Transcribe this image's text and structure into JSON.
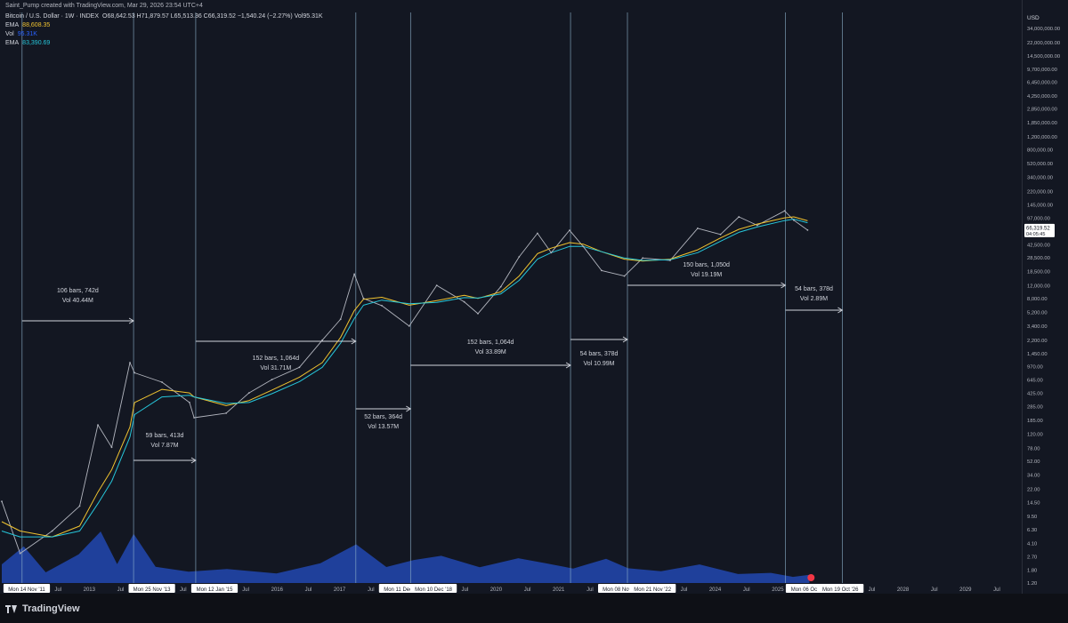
{
  "header": {
    "credit": "Saint_Pump created with TradingView.com, Mar 29, 2026 23:54 UTC+4",
    "symbol": "Bitcoin / U.S. Dollar · 1W · INDEX",
    "ohlc": "O68,642.53 H71,879.57 L65,513.36 C66,319.52 −1,540.24 (−2.27%) Vol95.31K",
    "indicators": [
      {
        "label": "EMA",
        "value": "88,608.35",
        "color": "#f0c330"
      },
      {
        "label": "Vol",
        "value": "95.31K",
        "color": "#2962ff"
      },
      {
        "label": "EMA",
        "value": "83,390.69",
        "color": "#26c6da"
      }
    ]
  },
  "price_axis": {
    "currency": "USD",
    "last_price": "66,319.52",
    "countdown": "04:05:45",
    "labels": [
      "34,000,000.00",
      "22,000,000.00",
      "14,500,000.00",
      "9,700,000.00",
      "6,450,000.00",
      "4,250,000.00",
      "2,850,000.00",
      "1,850,000.00",
      "1,200,000.00",
      "800,000.00",
      "520,000.00",
      "340,000.00",
      "220,000.00",
      "145,000.00",
      "97,000.00",
      "42,500.00",
      "28,500.00",
      "18,500.00",
      "12,000.00",
      "8,000.00",
      "5,200.00",
      "3,400.00",
      "2,200.00",
      "1,450.00",
      "970.00",
      "645.00",
      "425.00",
      "285.00",
      "185.00",
      "120.00",
      "78.00",
      "52.00",
      "34.00",
      "22.00",
      "14.50",
      "9.50",
      "6.30",
      "4.10",
      "2.70",
      "1.80",
      "1.20"
    ]
  },
  "time_axis": {
    "labels": [
      {
        "text": "Mon 14 Nov '11",
        "highlight": true
      },
      {
        "text": "Jul"
      },
      {
        "text": "2013"
      },
      {
        "text": "Jul"
      },
      {
        "text": "Mon 25 Nov '13",
        "highlight": true
      },
      {
        "text": "Jul"
      },
      {
        "text": "Mon 12 Jan '15",
        "highlight": true
      },
      {
        "text": "Jul"
      },
      {
        "text": "2016"
      },
      {
        "text": "Jul"
      },
      {
        "text": "2017"
      },
      {
        "text": "Jul"
      },
      {
        "text": "Mon 11 Dec '17",
        "highlight": true
      },
      {
        "text": "Mon 10 Dec '18",
        "highlight": true
      },
      {
        "text": "Jul"
      },
      {
        "text": "2020"
      },
      {
        "text": "Jul"
      },
      {
        "text": "2021"
      },
      {
        "text": "Jul"
      },
      {
        "text": "Mon 08 Nov '21",
        "highlight": true
      },
      {
        "text": "Mon 21 Nov '22",
        "highlight": true
      },
      {
        "text": "Jul"
      },
      {
        "text": "2024"
      },
      {
        "text": "Jul"
      },
      {
        "text": "2025"
      },
      {
        "text": "Mon 06 Oct '25",
        "highlight": true
      },
      {
        "text": "Mon 19 Oct '26",
        "highlight": true
      },
      {
        "text": "Jul"
      },
      {
        "text": "2028"
      },
      {
        "text": "Jul"
      },
      {
        "text": "2029"
      },
      {
        "text": "Jul"
      }
    ]
  },
  "annotations": [
    {
      "bars": "106 bars, 742d",
      "vol": "Vol 40.44M"
    },
    {
      "bars": "59 bars, 413d",
      "vol": "Vol 7.87M"
    },
    {
      "bars": "152 bars, 1,064d",
      "vol": "Vol 31.71M"
    },
    {
      "bars": "52 bars, 364d",
      "vol": "Vol 13.57M"
    },
    {
      "bars": "152 bars, 1,064d",
      "vol": "Vol 33.89M"
    },
    {
      "bars": "54 bars, 378d",
      "vol": "Vol 10.99M"
    },
    {
      "bars": "150 bars, 1,050d",
      "vol": "Vol 19.19M"
    },
    {
      "bars": "54 bars, 378d",
      "vol": "Vol 2.89M"
    }
  ],
  "footer": {
    "brand": "TradingView"
  },
  "colors": {
    "background": "#131722",
    "price_line": "#b2b5be",
    "ema_fast": "#f0c330",
    "ema_slow": "#26c6da",
    "volume": "#2962ff",
    "vertical_line": "#8fb3cc"
  },
  "chart_data": {
    "type": "line",
    "title": "Bitcoin / U.S. Dollar · 1W · INDEX",
    "scale": "log",
    "ylim": [
      1,
      40000000
    ],
    "grid": false,
    "x": [
      "2011-07",
      "2011-11",
      "2012-06",
      "2012-12",
      "2013-04",
      "2013-07",
      "2013-11",
      "2013-12",
      "2014-06",
      "2014-12",
      "2015-01",
      "2015-08",
      "2016-01",
      "2016-06",
      "2016-12",
      "2017-05",
      "2017-09",
      "2017-12",
      "2018-02",
      "2018-06",
      "2018-12",
      "2019-06",
      "2019-12",
      "2020-03",
      "2020-08",
      "2020-12",
      "2021-04",
      "2021-07",
      "2021-11",
      "2022-02",
      "2022-06",
      "2022-11",
      "2023-03",
      "2023-09",
      "2024-03",
      "2024-08",
      "2024-12",
      "2025-04",
      "2025-10",
      "2025-12",
      "2026-03"
    ],
    "series": [
      {
        "values": [
          15,
          3,
          6,
          13,
          160,
          80,
          1100,
          800,
          600,
          320,
          200,
          230,
          430,
          650,
          950,
          2200,
          4200,
          17000,
          8000,
          6400,
          3400,
          12000,
          7200,
          5000,
          11500,
          29000,
          60000,
          33000,
          66000,
          40000,
          19000,
          16000,
          28000,
          26000,
          70000,
          58000,
          100000,
          77000,
          120000,
          90000,
          66319.52
        ]
      },
      {
        "values": [
          8,
          6,
          5,
          7,
          20,
          40,
          150,
          320,
          480,
          430,
          380,
          290,
          340,
          470,
          700,
          1100,
          2400,
          5500,
          7800,
          8300,
          6500,
          7500,
          8800,
          8000,
          9800,
          16000,
          32000,
          38000,
          45000,
          43000,
          34000,
          27000,
          25500,
          27000,
          36000,
          52000,
          68000,
          80000,
          97000,
          100000,
          88608.35
        ]
      },
      {
        "values": [
          6,
          5,
          5,
          6,
          14,
          28,
          110,
          220,
          380,
          400,
          380,
          310,
          320,
          420,
          610,
          950,
          2000,
          4300,
          6500,
          7600,
          6800,
          7100,
          8200,
          8100,
          9200,
          14000,
          27000,
          33000,
          40000,
          40000,
          34000,
          28000,
          26000,
          26500,
          33000,
          47000,
          62000,
          73000,
          89000,
          93000,
          83390.69
        ]
      }
    ]
  }
}
